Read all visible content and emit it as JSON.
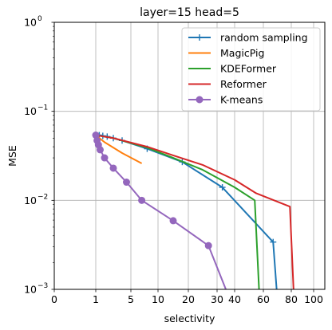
{
  "chart_data": {
    "type": "line",
    "title": "layer=15 head=5",
    "xlabel": "selectivity",
    "ylabel": "MSE",
    "yscale": "log",
    "ylim": [
      0.001,
      1
    ],
    "xlim": [
      0,
      105
    ],
    "grid": true,
    "legend_position": "top-right",
    "x_ticks": [
      {
        "value": 0,
        "label": "0"
      },
      {
        "value": 1,
        "label": "1"
      },
      {
        "value": 5,
        "label": "5"
      },
      {
        "value": 10,
        "label": "10"
      },
      {
        "value": 20,
        "label": "20"
      },
      {
        "value": 30,
        "label": "30"
      },
      {
        "value": 40,
        "label": "40"
      },
      {
        "value": 60,
        "label": "60"
      },
      {
        "value": 80,
        "label": "80"
      },
      {
        "value": 100,
        "label": "100"
      }
    ],
    "y_ticks": [
      {
        "value": 0.001,
        "base": "10",
        "exp": "−3"
      },
      {
        "value": 0.01,
        "base": "10",
        "exp": "−2"
      },
      {
        "value": 0.1,
        "base": "10",
        "exp": "−1"
      },
      {
        "value": 1,
        "base": "10",
        "exp": "0"
      }
    ],
    "series": [
      {
        "name": "random sampling",
        "color": "#1f77b4",
        "marker": "plus",
        "x": [
          1.0,
          1.4,
          1.8,
          2.3,
          3.0,
          4.0,
          8.0,
          18.0,
          33.0,
          67.0,
          69.5
        ],
        "y": [
          0.054,
          0.054,
          0.053,
          0.052,
          0.05,
          0.047,
          0.038,
          0.027,
          0.014,
          0.0034,
          0.001
        ]
      },
      {
        "name": "MagicPig",
        "color": "#ff7f0e",
        "marker": "none",
        "x": [
          1.0,
          2.0,
          4.0,
          7.0
        ],
        "y": [
          0.054,
          0.045,
          0.034,
          0.026
        ]
      },
      {
        "name": "KDEFormer",
        "color": "#2ca02c",
        "marker": "none",
        "x": [
          1.0,
          3.0,
          8.0,
          15.0,
          25.0,
          40.0,
          54.0,
          57.0
        ],
        "y": [
          0.054,
          0.05,
          0.039,
          0.03,
          0.022,
          0.014,
          0.01,
          0.001
        ]
      },
      {
        "name": "Reformer",
        "color": "#d62728",
        "marker": "none",
        "x": [
          1.0,
          3.0,
          8.0,
          15.0,
          25.0,
          40.0,
          55.0,
          79.0,
          82.0
        ],
        "y": [
          0.054,
          0.05,
          0.04,
          0.032,
          0.025,
          0.017,
          0.012,
          0.0085,
          0.001
        ]
      },
      {
        "name": "K-means",
        "color": "#9467bd",
        "marker": "circle",
        "x": [
          1.0,
          1.15,
          1.3,
          1.5,
          2.0,
          3.0,
          4.5,
          7.0,
          15.0,
          27.0,
          35.0
        ],
        "y": [
          0.054,
          0.047,
          0.042,
          0.037,
          0.03,
          0.023,
          0.016,
          0.01,
          0.0059,
          0.0031,
          0.001
        ]
      }
    ]
  }
}
